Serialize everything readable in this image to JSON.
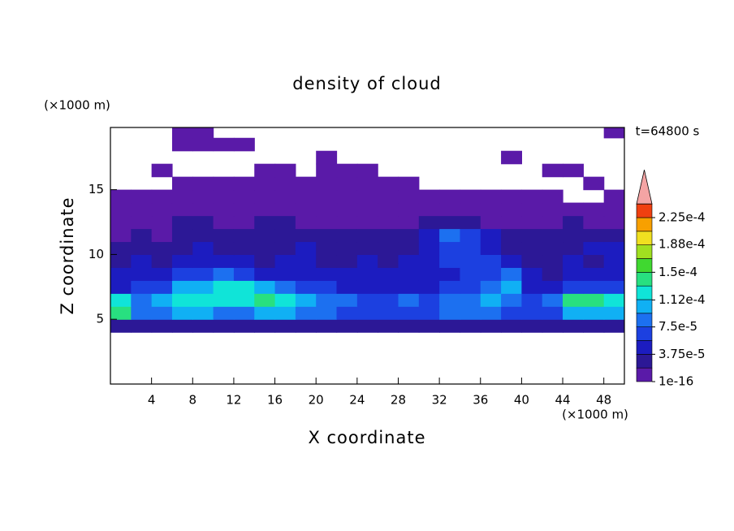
{
  "chart_data": {
    "type": "heatmap",
    "title": "density of cloud",
    "xlabel": "X coordinate",
    "ylabel": "Z coordinate",
    "xunit": "(×1000 m)",
    "yunit": "(×1000 m)",
    "annotation": "t=64800 s",
    "xlim": [
      0,
      50
    ],
    "ylim": [
      0,
      19.8
    ],
    "xticks": [
      4,
      8,
      12,
      16,
      20,
      24,
      28,
      32,
      36,
      40,
      44,
      48
    ],
    "yticks": [
      5,
      10,
      15
    ],
    "x": [
      1,
      3,
      5,
      7,
      9,
      11,
      13,
      15,
      17,
      19,
      21,
      23,
      25,
      27,
      29,
      31,
      33,
      35,
      37,
      39,
      41,
      43,
      45,
      47,
      49
    ],
    "y": [
      4.5,
      5.5,
      6.5,
      7.5,
      8.5,
      9.5,
      10.5,
      11.5,
      12.5,
      13.5,
      14.5,
      15.5,
      16.5,
      17.5,
      18.5,
      19.5
    ],
    "z": [
      [
        2.5e-05,
        2.5e-05,
        2.5e-05,
        2.5e-05,
        2.5e-05,
        2.5e-05,
        2.5e-05,
        2.5e-05,
        2.5e-05,
        2.5e-05,
        2.5e-05,
        2.5e-05,
        2.5e-05,
        2.5e-05,
        2.5e-05,
        2.5e-05,
        2.5e-05,
        2.5e-05,
        2.5e-05,
        2.5e-05,
        2.5e-05,
        2.5e-05,
        2.5e-05,
        2.5e-05,
        2.5e-05
      ],
      [
        0.00014,
        8.5e-05,
        8.5e-05,
        0.000105,
        0.000105,
        8.5e-05,
        8.5e-05,
        0.000105,
        0.000105,
        8.5e-05,
        8.5e-05,
        6.5e-05,
        6.5e-05,
        6.5e-05,
        6.5e-05,
        6.5e-05,
        8.5e-05,
        8.5e-05,
        8.5e-05,
        6.5e-05,
        6.5e-05,
        6.5e-05,
        0.000105,
        0.000105,
        0.000105
      ],
      [
        0.00012,
        8.5e-05,
        0.000105,
        0.00012,
        0.00012,
        0.00012,
        0.00012,
        0.00014,
        0.00012,
        0.000105,
        8.5e-05,
        8.5e-05,
        6.5e-05,
        6.5e-05,
        8.5e-05,
        6.5e-05,
        8.5e-05,
        8.5e-05,
        0.000105,
        8.5e-05,
        6.5e-05,
        8.5e-05,
        0.00014,
        0.00014,
        0.00012
      ],
      [
        4.5e-05,
        6.5e-05,
        6.5e-05,
        0.000105,
        0.000105,
        0.00012,
        0.00012,
        0.000105,
        8.5e-05,
        6.5e-05,
        6.5e-05,
        4.5e-05,
        4.5e-05,
        4.5e-05,
        4.5e-05,
        4.5e-05,
        6.5e-05,
        6.5e-05,
        8.5e-05,
        0.000105,
        4.5e-05,
        4.5e-05,
        6.5e-05,
        6.5e-05,
        6.5e-05
      ],
      [
        4.5e-05,
        4.5e-05,
        4.5e-05,
        6.5e-05,
        6.5e-05,
        8.5e-05,
        6.5e-05,
        4.5e-05,
        4.5e-05,
        4.5e-05,
        4.5e-05,
        4.5e-05,
        4.5e-05,
        4.5e-05,
        4.5e-05,
        4.5e-05,
        4.5e-05,
        6.5e-05,
        6.5e-05,
        8.5e-05,
        4.5e-05,
        2.5e-05,
        4.5e-05,
        4.5e-05,
        4.5e-05
      ],
      [
        2.5e-05,
        4.5e-05,
        2.5e-05,
        4.5e-05,
        4.5e-05,
        4.5e-05,
        4.5e-05,
        2.5e-05,
        4.5e-05,
        4.5e-05,
        2.5e-05,
        2.5e-05,
        4.5e-05,
        2.5e-05,
        4.5e-05,
        4.5e-05,
        6.5e-05,
        6.5e-05,
        6.5e-05,
        4.5e-05,
        2.5e-05,
        2.5e-05,
        4.5e-05,
        2.5e-05,
        4.5e-05
      ],
      [
        2.5e-05,
        2.5e-05,
        2.5e-05,
        2.5e-05,
        4.5e-05,
        2.5e-05,
        2.5e-05,
        2.5e-05,
        2.5e-05,
        4.5e-05,
        2.5e-05,
        2.5e-05,
        2.5e-05,
        2.5e-05,
        2.5e-05,
        4.5e-05,
        6.5e-05,
        6.5e-05,
        4.5e-05,
        2.5e-05,
        2.5e-05,
        2.5e-05,
        2.5e-05,
        4.5e-05,
        4.5e-05
      ],
      [
        5e-06,
        2.5e-05,
        5e-06,
        2.5e-05,
        2.5e-05,
        2.5e-05,
        2.5e-05,
        2.5e-05,
        2.5e-05,
        2.5e-05,
        2.5e-05,
        2.5e-05,
        2.5e-05,
        2.5e-05,
        2.5e-05,
        4.5e-05,
        8.5e-05,
        6.5e-05,
        4.5e-05,
        2.5e-05,
        2.5e-05,
        2.5e-05,
        2.5e-05,
        2.5e-05,
        2.5e-05
      ],
      [
        5e-06,
        5e-06,
        5e-06,
        2.5e-05,
        2.5e-05,
        5e-06,
        5e-06,
        2.5e-05,
        2.5e-05,
        5e-06,
        5e-06,
        5e-06,
        5e-06,
        5e-06,
        5e-06,
        2.5e-05,
        2.5e-05,
        2.5e-05,
        5e-06,
        5e-06,
        5e-06,
        5e-06,
        2.5e-05,
        5e-06,
        5e-06
      ],
      [
        5e-06,
        5e-06,
        5e-06,
        5e-06,
        5e-06,
        5e-06,
        5e-06,
        5e-06,
        5e-06,
        5e-06,
        5e-06,
        5e-06,
        5e-06,
        5e-06,
        5e-06,
        5e-06,
        5e-06,
        5e-06,
        5e-06,
        5e-06,
        5e-06,
        5e-06,
        5e-06,
        5e-06,
        5e-06
      ],
      [
        5e-06,
        5e-06,
        5e-06,
        5e-06,
        5e-06,
        5e-06,
        5e-06,
        5e-06,
        5e-06,
        5e-06,
        5e-06,
        5e-06,
        5e-06,
        5e-06,
        5e-06,
        5e-06,
        5e-06,
        5e-06,
        5e-06,
        5e-06,
        5e-06,
        5e-06,
        null,
        null,
        5e-06
      ],
      [
        null,
        null,
        null,
        5e-06,
        5e-06,
        5e-06,
        5e-06,
        5e-06,
        5e-06,
        5e-06,
        5e-06,
        5e-06,
        5e-06,
        5e-06,
        5e-06,
        null,
        null,
        null,
        null,
        null,
        null,
        null,
        null,
        5e-06,
        null
      ],
      [
        null,
        null,
        5e-06,
        null,
        null,
        null,
        null,
        5e-06,
        5e-06,
        null,
        5e-06,
        5e-06,
        5e-06,
        null,
        null,
        null,
        null,
        null,
        null,
        null,
        null,
        5e-06,
        5e-06,
        null,
        null
      ],
      [
        null,
        null,
        null,
        null,
        null,
        null,
        null,
        null,
        null,
        null,
        5e-06,
        null,
        null,
        null,
        null,
        null,
        null,
        null,
        null,
        5e-06,
        null,
        null,
        null,
        null,
        null
      ],
      [
        null,
        null,
        null,
        5e-06,
        5e-06,
        5e-06,
        5e-06,
        null,
        null,
        null,
        null,
        null,
        null,
        null,
        null,
        null,
        null,
        null,
        null,
        null,
        null,
        null,
        null,
        null,
        null
      ],
      [
        null,
        null,
        null,
        5e-06,
        5e-06,
        null,
        null,
        null,
        null,
        null,
        null,
        null,
        null,
        null,
        null,
        null,
        null,
        null,
        null,
        null,
        null,
        null,
        null,
        null,
        5e-06
      ]
    ],
    "colorbar": {
      "levels": [
        1e-16,
        1.875e-05,
        3.75e-05,
        5.625e-05,
        7.5e-05,
        9.375e-05,
        0.0001125,
        0.00013125,
        0.00015,
        0.00016875,
        0.0001875,
        0.00020625,
        0.000225,
        0.00024375
      ],
      "colors": [
        "#5a1aa8",
        "#2c1896",
        "#1c1cc0",
        "#1c40e0",
        "#1c70f0",
        "#10b0f4",
        "#10e4d8",
        "#28e080",
        "#40d830",
        "#a0e020",
        "#f0e020",
        "#f8a000",
        "#f04010"
      ],
      "over_color": "#f4a4a4",
      "ticks": [
        {
          "value": 1e-16,
          "label": "1e-16"
        },
        {
          "value": 3.75e-05,
          "label": "3.75e-5"
        },
        {
          "value": 7.5e-05,
          "label": "7.5e-5"
        },
        {
          "value": 0.000112,
          "label": "1.12e-4"
        },
        {
          "value": 0.00015,
          "label": "1.5e-4"
        },
        {
          "value": 0.000188,
          "label": "1.88e-4"
        },
        {
          "value": 0.000225,
          "label": "2.25e-4"
        }
      ]
    }
  }
}
